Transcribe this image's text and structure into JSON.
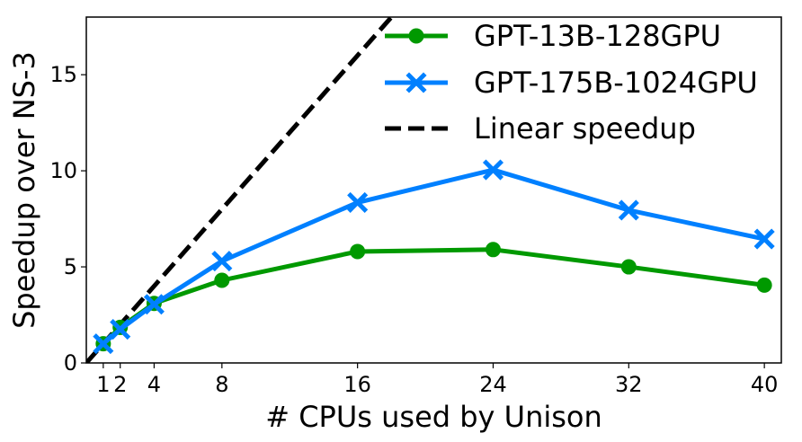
{
  "chart_data": {
    "type": "line",
    "title": "",
    "xlabel": "# CPUs used by Unison",
    "ylabel": "Speedup over NS-3",
    "xlim": [
      0,
      41
    ],
    "ylim": [
      0,
      18
    ],
    "x_ticks": [
      1,
      2,
      4,
      8,
      16,
      24,
      32,
      40
    ],
    "x_tick_labels": [
      "1",
      "2",
      "4",
      "8",
      "16",
      "24",
      "32",
      "40"
    ],
    "y_ticks": [
      0,
      5,
      10,
      15
    ],
    "y_tick_labels": [
      "0",
      "5",
      "10",
      "15"
    ],
    "grid": false,
    "legend_position": "top-right",
    "series": [
      {
        "name": "GPT-13B-128GPU",
        "color": "#009900",
        "marker": "circle",
        "line_style": "solid",
        "x": [
          1,
          2,
          4,
          8,
          16,
          24,
          32,
          40
        ],
        "values": [
          1.0,
          1.85,
          3.1,
          4.3,
          5.8,
          5.9,
          5.0,
          4.05
        ]
      },
      {
        "name": "GPT-175B-1024GPU",
        "color": "#0080ff",
        "marker": "x",
        "line_style": "solid",
        "x": [
          1,
          2,
          4,
          8,
          16,
          24,
          32,
          40
        ],
        "values": [
          1.0,
          1.75,
          3.05,
          5.3,
          8.35,
          10.05,
          7.95,
          6.45
        ]
      },
      {
        "name": "Linear speedup",
        "color": "#000000",
        "marker": "none",
        "line_style": "dashed",
        "x": [
          0,
          18
        ],
        "values": [
          0,
          18
        ]
      }
    ]
  }
}
